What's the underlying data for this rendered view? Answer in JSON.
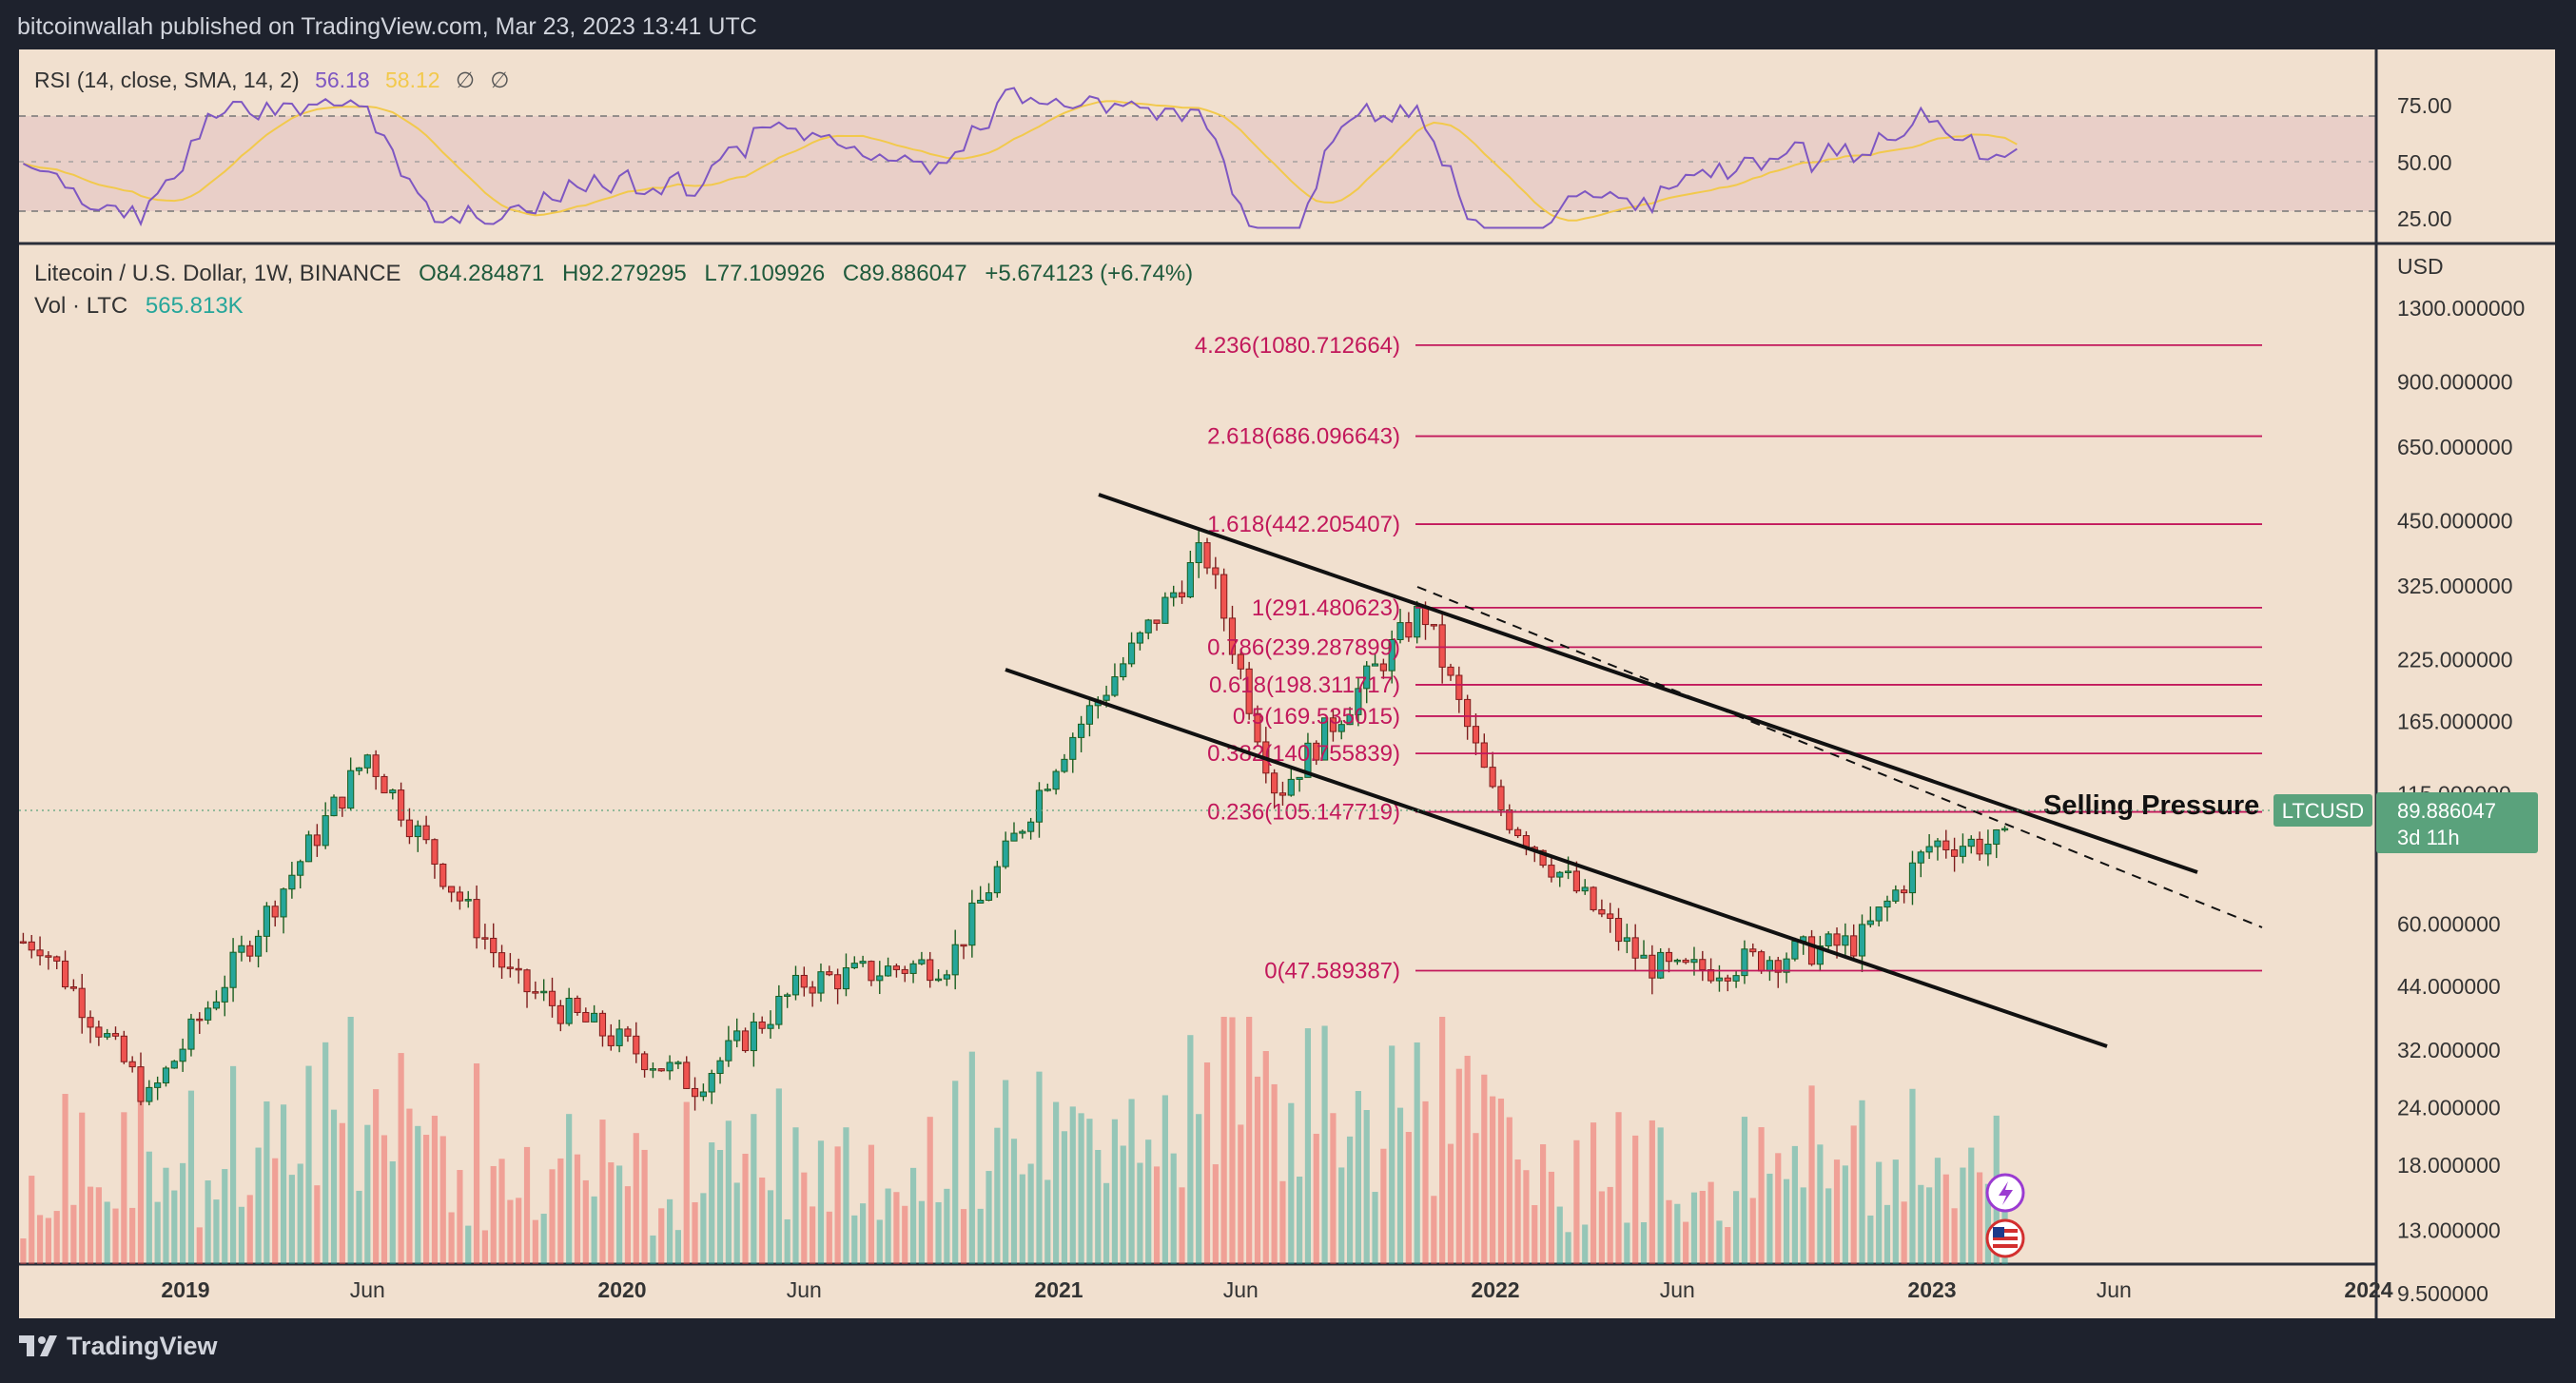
{
  "header": {
    "publisher": "bitcoinwallah published on TradingView.com, Mar 23, 2023 13:41 UTC"
  },
  "footer": {
    "brand": "TradingView",
    "logo_icon": "tradingview-logo-icon"
  },
  "colors": {
    "bg": "#f1e0cf",
    "up": "#26a69a",
    "down": "#ef5350",
    "fib": "#c2185b",
    "rsi": "#7e57c2",
    "rsi_sma": "#f2c94c",
    "label_bg": "#5aa27c"
  },
  "rsi_panel": {
    "legend_name": "RSI (14, close, SMA, 14, 2)",
    "rsi_value": "56.18",
    "sma_value": "58.12",
    "na1": "∅",
    "na2": "∅",
    "ticks": [
      "75.00",
      "50.00",
      "25.00"
    ]
  },
  "price_panel": {
    "legend_name": "Litecoin / U.S. Dollar, 1W, BINANCE",
    "open": "O84.284871",
    "high": "H92.279295",
    "low": "L77.109926",
    "close": "C89.886047",
    "change": "+5.674123 (+6.74%)",
    "vol_label": "Vol · LTC",
    "vol_value": "565.813K",
    "currency": "USD",
    "ticks": [
      "1300.000000",
      "900.000000",
      "650.000000",
      "450.000000",
      "325.000000",
      "225.000000",
      "165.000000",
      "115.000000",
      "60.000000",
      "44.000000",
      "32.000000",
      "24.000000",
      "18.000000",
      "13.000000",
      "9.500000"
    ],
    "symbol_tag": "LTCUSD",
    "price_tag": "89.886047",
    "countdown": "3d 11h",
    "annotation": "Selling Pressure",
    "event_icons": [
      "lightning-event-icon",
      "us-flag-event-icon"
    ]
  },
  "time_axis": [
    "2019",
    "Jun",
    "2020",
    "Jun",
    "2021",
    "Jun",
    "2022",
    "Jun",
    "2023",
    "Jun",
    "2024"
  ],
  "chart_data": [
    {
      "type": "line",
      "title": "RSI (14, close, SMA, 14, 2)",
      "series": [
        {
          "name": "RSI",
          "last": 56.18
        },
        {
          "name": "SMA",
          "last": 58.12
        }
      ],
      "ylim": [
        20,
        85
      ],
      "bands": [
        30,
        50,
        70
      ]
    },
    {
      "type": "candlestick",
      "title": "Litecoin / U.S. Dollar, 1W, BINANCE",
      "x": [
        "2018-09",
        "2018-12",
        "2019-06",
        "2019-10",
        "2020-03",
        "2020-06",
        "2020-10",
        "2021-01",
        "2021-05",
        "2021-07",
        "2021-11",
        "2022-01",
        "2022-05",
        "2022-06",
        "2022-11",
        "2023-01",
        "2023-03"
      ],
      "close": [
        55,
        25,
        140,
        45,
        27,
        45,
        50,
        140,
        390,
        115,
        290,
        110,
        50,
        47,
        55,
        90,
        89.886047
      ],
      "last": {
        "open": 84.284871,
        "high": 92.279295,
        "low": 77.109926,
        "close": 89.886047,
        "change": 5.674123,
        "change_pct": 6.74
      },
      "fibonacci": [
        {
          "level": "4.236",
          "price": 1080.712664
        },
        {
          "level": "2.618",
          "price": 686.096643
        },
        {
          "level": "1.618",
          "price": 442.205407
        },
        {
          "level": "1",
          "price": 291.480623
        },
        {
          "level": "0.786",
          "price": 239.287899
        },
        {
          "level": "0.618",
          "price": 198.311717
        },
        {
          "level": "0.5",
          "price": 169.535015
        },
        {
          "level": "0.382",
          "price": 140.755839
        },
        {
          "level": "0.236",
          "price": 105.147719
        },
        {
          "level": "0",
          "price": 47.589387
        }
      ],
      "ylabel": "USD",
      "yscale": "log",
      "ylim": [
        7.5,
        1500
      ]
    }
  ]
}
